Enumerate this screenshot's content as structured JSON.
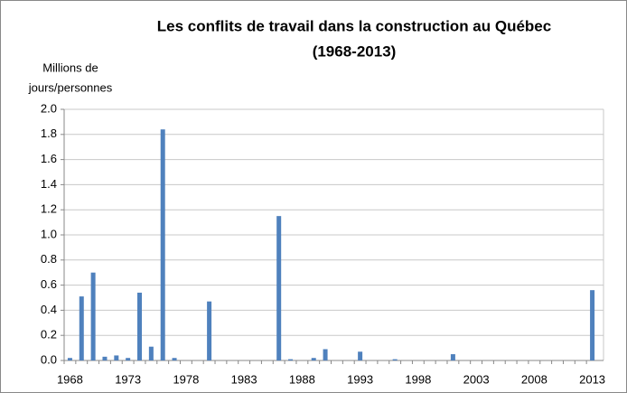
{
  "chart_data": {
    "type": "bar",
    "title": [
      "Les conflits de travail dans la construction au Québec",
      "(1968-2013)"
    ],
    "y_axis_label": [
      "Millions de",
      "jours/personnes"
    ],
    "categories": [
      "1968",
      null,
      null,
      null,
      null,
      "1973",
      null,
      null,
      null,
      null,
      "1978",
      null,
      null,
      null,
      null,
      "1983",
      null,
      null,
      null,
      null,
      "1988",
      null,
      null,
      null,
      null,
      "1993",
      null,
      null,
      null,
      null,
      "1998",
      null,
      null,
      null,
      null,
      "2003",
      null,
      null,
      null,
      null,
      "2008",
      null,
      null,
      null,
      null,
      "2013"
    ],
    "values": [
      0.02,
      0.51,
      0.7,
      0.03,
      0.04,
      0.02,
      0.54,
      0.11,
      1.84,
      0.02,
      0,
      0,
      0.47,
      0,
      0,
      0,
      0,
      0,
      1.15,
      0.01,
      0,
      0.02,
      0.09,
      0,
      0,
      0.07,
      0,
      0,
      0.01,
      0,
      0,
      0,
      0,
      0.05,
      0,
      0,
      0,
      0,
      0,
      0,
      0,
      0,
      0,
      0,
      0,
      0.56
    ],
    "color": "#4f81bd",
    "ylim": [
      0,
      2
    ],
    "yticks": [
      {
        "value": 0,
        "label": "0.0"
      },
      0.2,
      0.4,
      0.6,
      0.8,
      {
        "value": 1,
        "label": "1.0"
      },
      1.2,
      1.4,
      1.6,
      1.8,
      {
        "value": 2,
        "label": "2.0"
      }
    ],
    "grid": true
  }
}
